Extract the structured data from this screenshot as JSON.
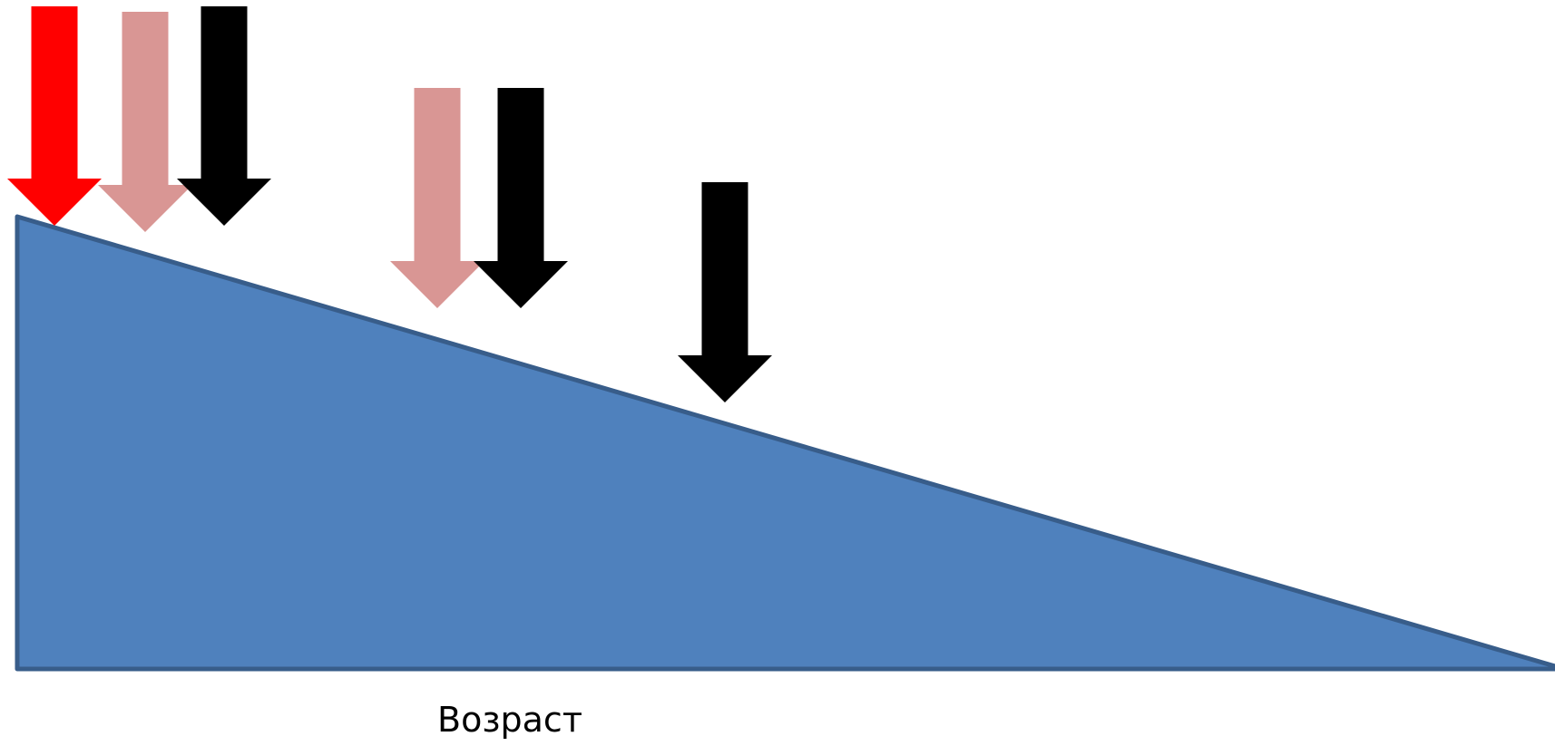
{
  "diagram": {
    "axis_label": "Возраст",
    "wedge": {
      "fill": "#4f81bd",
      "stroke": "#385d8a"
    },
    "arrows": [
      {
        "id": "arrow-red-1",
        "color": "#ff0000",
        "group": 1
      },
      {
        "id": "arrow-pink-1",
        "color": "#d99694",
        "group": 1
      },
      {
        "id": "arrow-black-1",
        "color": "#000000",
        "group": 1
      },
      {
        "id": "arrow-pink-2",
        "color": "#d99694",
        "group": 2
      },
      {
        "id": "arrow-black-2",
        "color": "#000000",
        "group": 2
      },
      {
        "id": "arrow-black-3",
        "color": "#000000",
        "group": 3
      }
    ]
  }
}
